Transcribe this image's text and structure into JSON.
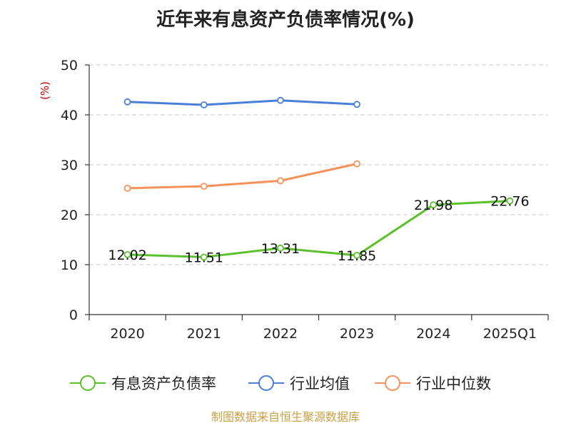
{
  "chart_data": {
    "type": "line",
    "title": "近年来有息资产负债率情况(%)",
    "ylabel": "(%)",
    "ylim": [
      0,
      50
    ],
    "yticks": [
      0,
      10,
      20,
      30,
      40,
      50
    ],
    "categories": [
      "2020",
      "2021",
      "2022",
      "2023",
      "2024",
      "2025Q1"
    ],
    "grid": true,
    "legend_placement": "bottom",
    "series": [
      {
        "name": "有息资产负债率",
        "color": "#5ac12a",
        "values": [
          12.02,
          11.51,
          13.31,
          11.85,
          21.98,
          22.76
        ],
        "labels": [
          "12.02",
          "11.51",
          "13.31",
          "11.85",
          "21.98",
          "22.76"
        ]
      },
      {
        "name": "行业均值",
        "color": "#4a7fd8",
        "values": [
          42.6,
          42.0,
          42.9,
          42.1,
          null,
          null
        ]
      },
      {
        "name": "行业中位数",
        "color": "#f5915a",
        "values": [
          25.3,
          25.7,
          26.8,
          30.2,
          null,
          null
        ]
      }
    ],
    "source": "制图数据来自恒生聚源数据库",
    "colors": {
      "ylabel": "#cc0000",
      "source": "#c9a045"
    }
  }
}
